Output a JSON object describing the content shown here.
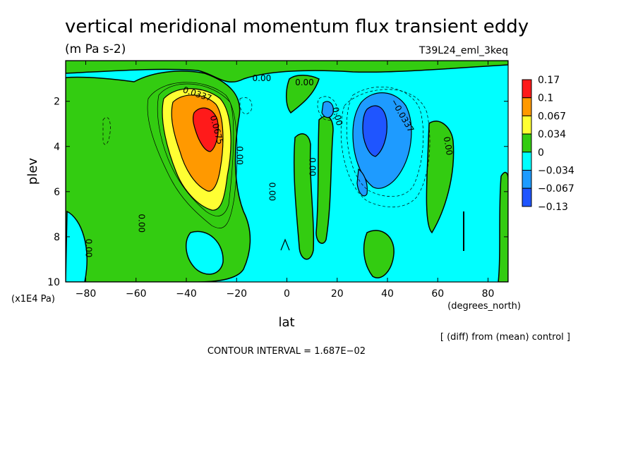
{
  "chart_data": {
    "type": "heatmap",
    "title": "vertical meridional momentum flux transient eddy",
    "units": "(m Pa s-2)",
    "experiment": "T39L24_eml_3keq",
    "xlabel": "lat",
    "xunits": "(degrees_north)",
    "ylabel": "plev",
    "yunits": "(x1E4 Pa)",
    "xlim": [
      -88,
      88
    ],
    "ylim": [
      0.2,
      10
    ],
    "y_inverted": true,
    "xticks": [
      -80,
      -60,
      -40,
      -20,
      0,
      20,
      40,
      60,
      80
    ],
    "xtick_labels": [
      "−80",
      "−60",
      "−40",
      "−20",
      "0",
      "20",
      "40",
      "60",
      "80"
    ],
    "yticks": [
      2,
      4,
      6,
      8,
      10
    ],
    "ytick_labels": [
      "2",
      "4",
      "6",
      "8",
      "10"
    ],
    "levels": [
      -0.13,
      -0.067,
      -0.034,
      0,
      0.034,
      0.067,
      0.1,
      0.17
    ],
    "legend": {
      "position": "right",
      "labels": [
        "0.17",
        "0.1",
        "0.067",
        "0.034",
        "0",
        "−0.034",
        "−0.067",
        "−0.13"
      ],
      "colors": [
        "#ff1a1a",
        "#ff9900",
        "#ffff33",
        "#33cc11",
        "#00ffff",
        "#1e9bff",
        "#1f55ff"
      ]
    },
    "contour_labels": [
      {
        "text": "0.00",
        "x": -10,
        "y": 1.1,
        "rot": 0
      },
      {
        "text": "0.00",
        "x": 7,
        "y": 1.3,
        "rot": 0
      },
      {
        "text": "0.0337",
        "x": -36,
        "y": 1.8,
        "rot": 18
      },
      {
        "text": "0.0675",
        "x": -29,
        "y": 3.3,
        "rot": 75
      },
      {
        "text": "0.00",
        "x": -20,
        "y": 4.4,
        "rot": 90
      },
      {
        "text": "0.00",
        "x": 9,
        "y": 4.9,
        "rot": 90
      },
      {
        "text": "0.00",
        "x": -7,
        "y": 6.0,
        "rot": 90
      },
      {
        "text": "0.00",
        "x": -59,
        "y": 7.4,
        "rot": 90
      },
      {
        "text": "0.00",
        "x": -80,
        "y": 8.5,
        "rot": 90
      },
      {
        "text": "0.00",
        "x": 19,
        "y": 2.7,
        "rot": 75
      },
      {
        "text": "−0.0337",
        "x": 45,
        "y": 2.7,
        "rot": 60
      },
      {
        "text": "0.00",
        "x": 63,
        "y": 4.0,
        "rot": 80
      }
    ],
    "contour_interval": "CONTOUR INTERVAL = 1.687E−02",
    "difference_note": "[ (diff) from (mean) control ]"
  }
}
